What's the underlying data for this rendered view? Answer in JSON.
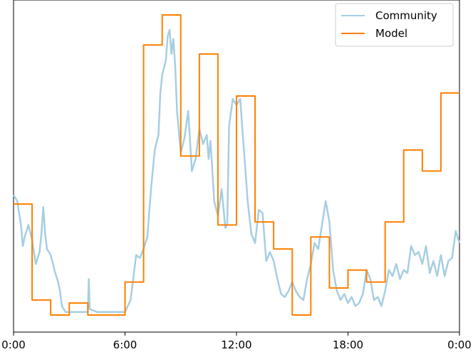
{
  "chart_data": {
    "type": "line",
    "title": "",
    "xlabel": "",
    "ylabel": "",
    "x_unit": "hours",
    "xlim": [
      0,
      24
    ],
    "ylim": [
      0,
      1
    ],
    "grid": false,
    "legend_placement": "top-right",
    "x_ticks": [
      {
        "x": 0,
        "label": "0:00"
      },
      {
        "x": 6,
        "label": "6:00"
      },
      {
        "x": 12,
        "label": "12:00"
      },
      {
        "x": 18,
        "label": "18:00"
      },
      {
        "x": 24,
        "label": "0:00"
      }
    ],
    "series": [
      {
        "name": "Community",
        "color": "#a6cee3",
        "style": "line",
        "x": [
          0,
          0.2,
          0.4,
          0.5,
          0.6,
          0.8,
          1.0,
          1.2,
          1.4,
          1.5,
          1.6,
          1.7,
          1.8,
          2.0,
          2.2,
          2.4,
          2.5,
          2.6,
          2.8,
          3.0,
          3.5,
          4.0,
          4.05,
          4.1,
          4.5,
          5.0,
          5.5,
          6.0,
          6.3,
          6.6,
          6.8,
          7.0,
          7.2,
          7.4,
          7.6,
          7.8,
          7.9,
          8.0,
          8.2,
          8.3,
          8.4,
          8.5,
          8.6,
          8.7,
          8.8,
          8.9,
          9.0,
          9.2,
          9.4,
          9.6,
          9.8,
          10.0,
          10.2,
          10.4,
          10.5,
          10.6,
          10.8,
          11.0,
          11.2,
          11.4,
          11.5,
          11.6,
          11.8,
          12.0,
          12.2,
          12.4,
          12.6,
          12.8,
          13.0,
          13.2,
          13.4,
          13.6,
          13.8,
          14.0,
          14.2,
          14.4,
          14.6,
          14.8,
          15.0,
          15.2,
          15.4,
          15.6,
          15.8,
          16.0,
          16.2,
          16.4,
          16.6,
          16.8,
          17.0,
          17.2,
          17.4,
          17.6,
          17.8,
          18.0,
          18.2,
          18.4,
          18.6,
          18.8,
          19.0,
          19.2,
          19.4,
          19.6,
          19.8,
          20.0,
          20.2,
          20.4,
          20.6,
          20.8,
          21.0,
          21.2,
          21.4,
          21.6,
          21.8,
          22.0,
          22.2,
          22.4,
          22.6,
          22.8,
          23.0,
          23.2,
          23.4,
          23.6,
          23.8,
          24.0
        ],
        "y": [
          0.4,
          0.38,
          0.3,
          0.23,
          0.26,
          0.3,
          0.25,
          0.17,
          0.21,
          0.27,
          0.36,
          0.27,
          0.22,
          0.2,
          0.15,
          0.11,
          0.08,
          0.03,
          0.01,
          0.01,
          0.01,
          0.01,
          0.12,
          0.02,
          0.01,
          0.01,
          0.01,
          0.01,
          0.05,
          0.2,
          0.19,
          0.22,
          0.26,
          0.42,
          0.55,
          0.6,
          0.74,
          0.8,
          0.85,
          0.93,
          0.95,
          0.87,
          0.92,
          0.83,
          0.68,
          0.61,
          0.54,
          0.59,
          0.68,
          0.48,
          0.52,
          0.62,
          0.57,
          0.6,
          0.52,
          0.58,
          0.38,
          0.33,
          0.42,
          0.29,
          0.3,
          0.63,
          0.72,
          0.7,
          0.72,
          0.55,
          0.38,
          0.27,
          0.24,
          0.35,
          0.34,
          0.18,
          0.21,
          0.18,
          0.12,
          0.07,
          0.06,
          0.08,
          0.11,
          0.08,
          0.06,
          0.05,
          0.12,
          0.17,
          0.24,
          0.22,
          0.3,
          0.38,
          0.31,
          0.15,
          0.08,
          0.05,
          0.07,
          0.04,
          0.06,
          0.03,
          0.04,
          0.07,
          0.15,
          0.12,
          0.05,
          0.06,
          0.03,
          0.08,
          0.15,
          0.13,
          0.17,
          0.12,
          0.15,
          0.14,
          0.23,
          0.2,
          0.21,
          0.17,
          0.23,
          0.14,
          0.18,
          0.13,
          0.2,
          0.13,
          0.18,
          0.19,
          0.28,
          0.24
        ]
      },
      {
        "name": "Model",
        "color": "#ff7f00",
        "style": "step",
        "x": [
          0,
          1,
          2,
          3,
          4,
          5,
          6,
          7,
          8,
          9,
          10,
          11,
          12,
          13,
          14,
          15,
          16,
          17,
          18,
          19,
          20,
          21,
          22,
          23,
          24
        ],
        "y": [
          0.37,
          0.05,
          0.0,
          0.04,
          0.0,
          0.0,
          0.11,
          0.9,
          1.0,
          0.53,
          0.87,
          0.3,
          0.73,
          0.31,
          0.22,
          0.0,
          0.26,
          0.09,
          0.15,
          0.11,
          0.31,
          0.55,
          0.48,
          0.74,
          0.74
        ]
      }
    ]
  }
}
